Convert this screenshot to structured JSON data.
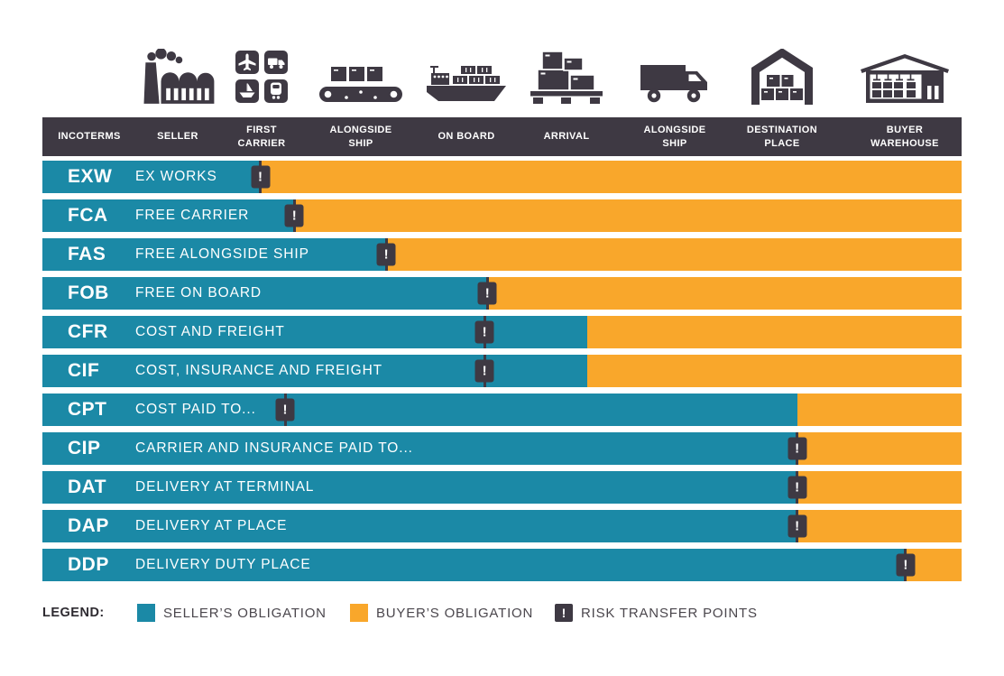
{
  "colors": {
    "seller_obligation": "#1b89a6",
    "buyer_obligation": "#f9a72b",
    "dark": "#3e3943",
    "legend_text": "#4b474d"
  },
  "risk_symbol": "!",
  "icons": [
    {
      "name": "factory-icon"
    },
    {
      "name": "multimodal-transport-icon"
    },
    {
      "name": "conveyor-belt-icon"
    },
    {
      "name": "container-ship-icon"
    },
    {
      "name": "pallet-boxes-icon"
    },
    {
      "name": "truck-icon"
    },
    {
      "name": "warehouse-shed-icon"
    },
    {
      "name": "rack-warehouse-icon"
    }
  ],
  "header": {
    "columns": [
      {
        "label": "INCOTERMS"
      },
      {
        "label": "SELLER"
      },
      {
        "label": "FIRST\nCARRIER"
      },
      {
        "label": "ALONGSIDE\nSHIP"
      },
      {
        "label": "ON BOARD"
      },
      {
        "label": "ARRIVAL"
      },
      {
        "label": "ALONGSIDE\nSHIP"
      },
      {
        "label": "DESTINATION\nPLACE"
      },
      {
        "label": "BUYER\nWAREHOUSE"
      }
    ]
  },
  "rows": [
    {
      "code": "EXW",
      "name": "EX WORKS",
      "seller_pct": 23.7,
      "marker_pct": 23.7
    },
    {
      "code": "FCA",
      "name": "FREE CARRIER",
      "seller_pct": 27.4,
      "marker_pct": 27.4
    },
    {
      "code": "FAS",
      "name": "FREE ALONGSIDE SHIP",
      "seller_pct": 37.4,
      "marker_pct": 37.4
    },
    {
      "code": "FOB",
      "name": "FREE ON BOARD",
      "seller_pct": 48.4,
      "marker_pct": 48.4
    },
    {
      "code": "CFR",
      "name": "COST AND FREIGHT",
      "seller_pct": 59.3,
      "marker_pct": 48.1
    },
    {
      "code": "CIF",
      "name": "COST, INSURANCE AND FREIGHT",
      "seller_pct": 59.3,
      "marker_pct": 48.1
    },
    {
      "code": "CPT",
      "name": "COST PAID TO...",
      "seller_pct": 82.1,
      "marker_pct": 26.4
    },
    {
      "code": "CIP",
      "name": "CARRIER AND INSURANCE PAID TO...",
      "seller_pct": 82.1,
      "marker_pct": 82.1
    },
    {
      "code": "DAT",
      "name": "DELIVERY AT TERMINAL",
      "seller_pct": 82.1,
      "marker_pct": 82.1
    },
    {
      "code": "DAP",
      "name": "DELIVERY AT PLACE",
      "seller_pct": 82.1,
      "marker_pct": 82.1
    },
    {
      "code": "DDP",
      "name": "DELIVERY DUTY PLACE",
      "seller_pct": 93.9,
      "marker_pct": 93.9
    }
  ],
  "legend": {
    "title": "LEGEND:",
    "items": [
      {
        "type": "seller",
        "label": "SELLER’S OBLIGATION"
      },
      {
        "type": "buyer",
        "label": "BUYER’S OBLIGATION"
      },
      {
        "type": "risk",
        "label": "RISK TRANSFER POINTS"
      }
    ]
  },
  "chart_data": {
    "type": "bar",
    "subtype": "horizontal-stacked-timeline",
    "title": "Incoterms – seller vs buyer obligations with risk transfer points",
    "categories": [
      "EXW",
      "FCA",
      "FAS",
      "FOB",
      "CFR",
      "CIF",
      "CPT",
      "CIP",
      "DAT",
      "DAP",
      "DDP"
    ],
    "category_names": [
      "EX WORKS",
      "FREE CARRIER",
      "FREE ALONGSIDE SHIP",
      "FREE ON BOARD",
      "COST AND FREIGHT",
      "COST, INSURANCE AND FREIGHT",
      "COST PAID TO...",
      "CARRIER AND INSURANCE PAID TO...",
      "DELIVERY AT TERMINAL",
      "DELIVERY AT PLACE",
      "DELIVERY DUTY PLACE"
    ],
    "series": [
      {
        "name": "Seller's obligation (% of route)",
        "values": [
          23.7,
          27.4,
          37.4,
          48.4,
          59.3,
          59.3,
          82.1,
          82.1,
          82.1,
          82.1,
          93.9
        ]
      },
      {
        "name": "Buyer's obligation (% of route)",
        "values": [
          76.3,
          72.6,
          62.6,
          51.6,
          40.7,
          40.7,
          17.9,
          17.9,
          17.9,
          17.9,
          6.1
        ]
      }
    ],
    "risk_transfer_points_pct": [
      23.7,
      27.4,
      37.4,
      48.4,
      48.1,
      48.1,
      26.4,
      82.1,
      82.1,
      82.1,
      93.9
    ],
    "x_stages": [
      "SELLER",
      "FIRST CARRIER",
      "ALONGSIDE SHIP",
      "ON BOARD",
      "ARRIVAL",
      "ALONGSIDE SHIP",
      "DESTINATION PLACE",
      "BUYER WAREHOUSE"
    ],
    "xlim": [
      0,
      100
    ],
    "legend_position": "bottom",
    "grid": false
  }
}
